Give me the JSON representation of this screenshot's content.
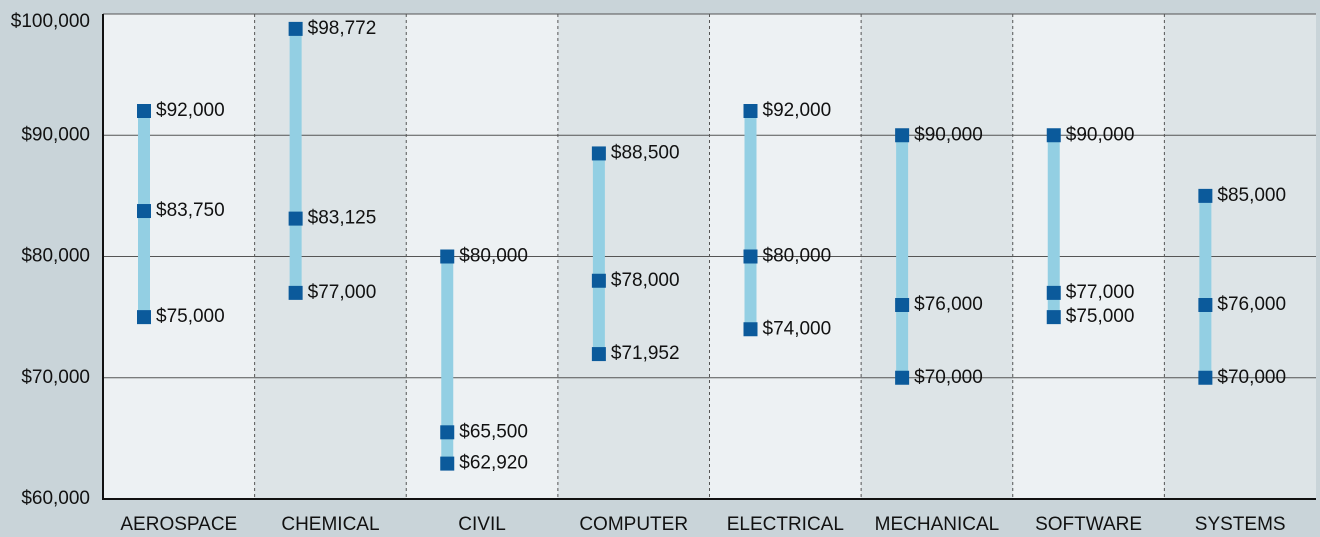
{
  "chart_data": {
    "type": "range",
    "categories": [
      "AEROSPACE",
      "CHEMICAL",
      "CIVIL",
      "COMPUTER",
      "ELECTRICAL",
      "MECHANICAL",
      "SOFTWARE",
      "SYSTEMS"
    ],
    "series": [
      {
        "color": "#0b5a9b",
        "values": [
          92000,
          98772,
          80000,
          88500,
          92000,
          90000,
          90000,
          85000
        ],
        "value_labels": [
          "$92,000",
          "$98,772",
          "$80,000",
          "$88,500",
          "$92,000",
          "$90,000",
          "$90,000",
          "$85,000"
        ]
      },
      {
        "color": "#0b5a9b",
        "values": [
          83750,
          83125,
          65500,
          78000,
          80000,
          76000,
          77000,
          76000
        ],
        "value_labels": [
          "$83,750",
          "$83,125",
          "$65,500",
          "$78,000",
          "$80,000",
          "$76,000",
          "$77,000",
          "$76,000"
        ]
      },
      {
        "color": "#0b5a9b",
        "values": [
          75000,
          77000,
          62920,
          71952,
          74000,
          70000,
          75000,
          70000
        ],
        "value_labels": [
          "$75,000",
          "$77,000",
          "$62,920",
          "$71,952",
          "$74,000",
          "$70,000",
          "$75,000",
          "$70,000"
        ]
      }
    ],
    "range_color": "#93cfe3",
    "ylim": [
      60000,
      100000
    ],
    "yticks": [
      {
        "value": 60000,
        "label": "$60,000"
      },
      {
        "value": 70000,
        "label": "$70,000"
      },
      {
        "value": 80000,
        "label": "$80,000"
      },
      {
        "value": 90000,
        "label": "$90,000"
      },
      {
        "value": 100000,
        "label": "$100,000"
      }
    ],
    "grid": true
  }
}
